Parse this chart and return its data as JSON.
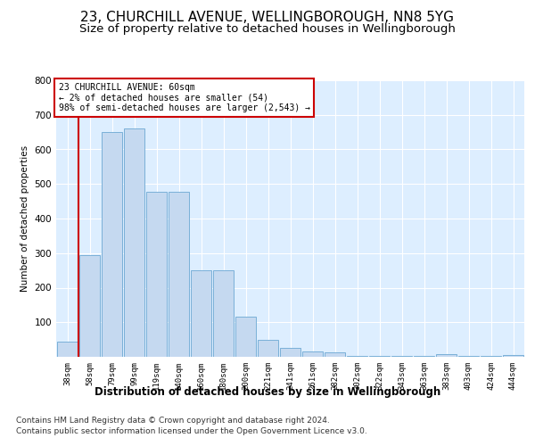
{
  "title1": "23, CHURCHILL AVENUE, WELLINGBOROUGH, NN8 5YG",
  "title2": "Size of property relative to detached houses in Wellingborough",
  "xlabel": "Distribution of detached houses by size in Wellingborough",
  "ylabel": "Number of detached properties",
  "footer1": "Contains HM Land Registry data © Crown copyright and database right 2024.",
  "footer2": "Contains public sector information licensed under the Open Government Licence v3.0.",
  "annotation_line1": "23 CHURCHILL AVENUE: 60sqm",
  "annotation_line2": "← 2% of detached houses are smaller (54)",
  "annotation_line3": "98% of semi-detached houses are larger (2,543) →",
  "categories": [
    "38sqm",
    "58sqm",
    "79sqm",
    "99sqm",
    "119sqm",
    "140sqm",
    "160sqm",
    "180sqm",
    "200sqm",
    "221sqm",
    "241sqm",
    "261sqm",
    "282sqm",
    "302sqm",
    "322sqm",
    "343sqm",
    "363sqm",
    "383sqm",
    "403sqm",
    "424sqm",
    "444sqm"
  ],
  "values": [
    45,
    295,
    650,
    660,
    478,
    478,
    250,
    250,
    115,
    50,
    27,
    15,
    12,
    3,
    2,
    2,
    2,
    7,
    2,
    2,
    5
  ],
  "bar_color": "#c5d9f0",
  "bar_edge_color": "#7ab0d8",
  "marker_color": "#cc0000",
  "ylim": [
    0,
    800
  ],
  "yticks": [
    0,
    100,
    200,
    300,
    400,
    500,
    600,
    700,
    800
  ],
  "fig_bg_color": "#ffffff",
  "plot_bg_color": "#ddeeff",
  "grid_color": "#ffffff",
  "title_fontsize": 11,
  "subtitle_fontsize": 9.5,
  "annotation_box_color": "#cc0000",
  "footer_fontsize": 6.5,
  "xlabel_fontsize": 8.5,
  "ylabel_fontsize": 7.5
}
